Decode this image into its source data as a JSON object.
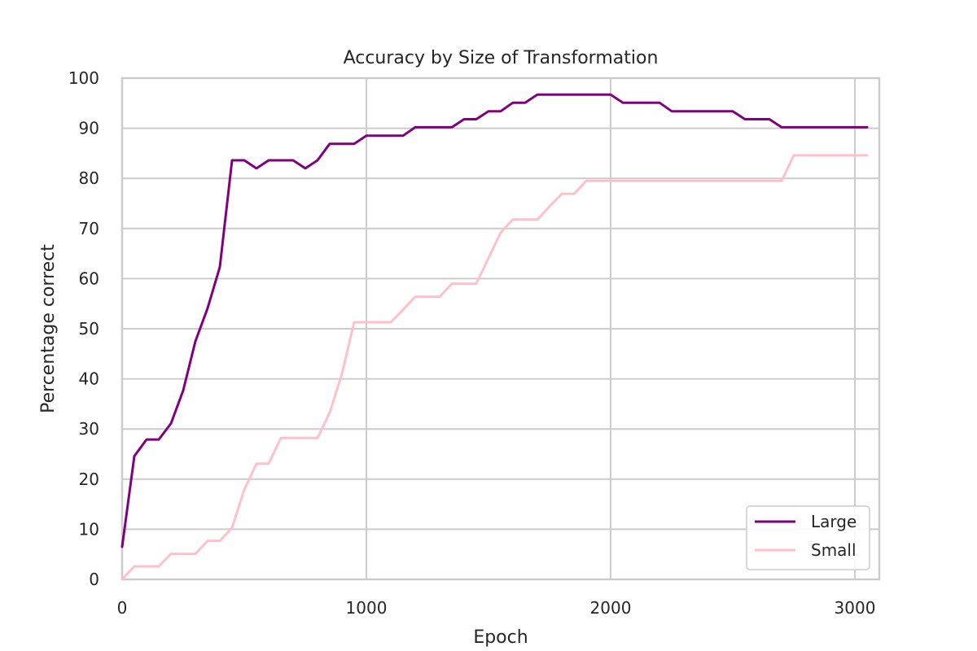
{
  "chart_data": {
    "type": "line",
    "title": "Accuracy by Size of Transformation",
    "xlabel": "Epoch",
    "ylabel": "Percentage correct",
    "xlim": [
      0,
      3100
    ],
    "ylim": [
      0,
      100
    ],
    "xticks": [
      0,
      1000,
      2000,
      3000
    ],
    "yticks": [
      0,
      10,
      20,
      30,
      40,
      50,
      60,
      70,
      80,
      90,
      100
    ],
    "grid": true,
    "legend_position": "lower-right",
    "series": [
      {
        "name": "Large",
        "color": "#800080",
        "x": [
          0,
          50,
          100,
          150,
          200,
          250,
          300,
          350,
          400,
          450,
          500,
          550,
          600,
          650,
          700,
          750,
          800,
          850,
          900,
          950,
          1000,
          1050,
          1100,
          1150,
          1200,
          1250,
          1300,
          1350,
          1400,
          1450,
          1500,
          1550,
          1600,
          1650,
          1700,
          1750,
          1800,
          1850,
          1900,
          1950,
          2000,
          2050,
          2100,
          2150,
          2200,
          2250,
          2300,
          2350,
          2400,
          2450,
          2500,
          2550,
          2600,
          2650,
          2700,
          2750,
          2800,
          2850,
          2900,
          2950,
          3000,
          3050
        ],
        "y": [
          6.5,
          24.6,
          27.9,
          27.9,
          31.1,
          37.7,
          47.5,
          54.1,
          62.3,
          83.6,
          83.6,
          82.0,
          83.6,
          83.6,
          83.6,
          82.0,
          83.6,
          86.9,
          86.9,
          86.9,
          88.5,
          88.5,
          88.5,
          88.5,
          90.2,
          90.2,
          90.2,
          90.2,
          91.8,
          91.8,
          93.4,
          93.4,
          95.1,
          95.1,
          96.7,
          96.7,
          96.7,
          96.7,
          96.7,
          96.7,
          96.7,
          95.1,
          95.1,
          95.1,
          95.1,
          93.4,
          93.4,
          93.4,
          93.4,
          93.4,
          93.4,
          91.8,
          91.8,
          91.8,
          90.2,
          90.2,
          90.2,
          90.2,
          90.2,
          90.2,
          90.2,
          90.2
        ]
      },
      {
        "name": "Small",
        "color": "#ffc0cb",
        "x": [
          0,
          50,
          100,
          150,
          200,
          250,
          300,
          350,
          400,
          450,
          500,
          550,
          600,
          650,
          700,
          750,
          800,
          850,
          900,
          950,
          1000,
          1050,
          1100,
          1150,
          1200,
          1250,
          1300,
          1350,
          1400,
          1450,
          1500,
          1550,
          1600,
          1650,
          1700,
          1750,
          1800,
          1850,
          1900,
          1950,
          2000,
          2050,
          2100,
          2150,
          2200,
          2250,
          2300,
          2350,
          2400,
          2450,
          2500,
          2550,
          2600,
          2650,
          2700,
          2750,
          2800,
          2850,
          2900,
          2950,
          3000,
          3050
        ],
        "y": [
          0,
          2.6,
          2.6,
          2.6,
          5.1,
          5.1,
          5.1,
          7.7,
          7.7,
          10.3,
          17.9,
          23.1,
          23.1,
          28.2,
          28.2,
          28.2,
          28.2,
          33.3,
          41.0,
          51.3,
          51.3,
          51.3,
          51.3,
          53.8,
          56.4,
          56.4,
          56.4,
          59.0,
          59.0,
          59.0,
          64.1,
          69.2,
          71.8,
          71.8,
          71.8,
          74.4,
          76.9,
          76.9,
          79.5,
          79.5,
          79.5,
          79.5,
          79.5,
          79.5,
          79.5,
          79.5,
          79.5,
          79.5,
          79.5,
          79.5,
          79.5,
          79.5,
          79.5,
          79.5,
          79.5,
          84.6,
          84.6,
          84.6,
          84.6,
          84.6,
          84.6,
          84.6
        ]
      }
    ]
  }
}
